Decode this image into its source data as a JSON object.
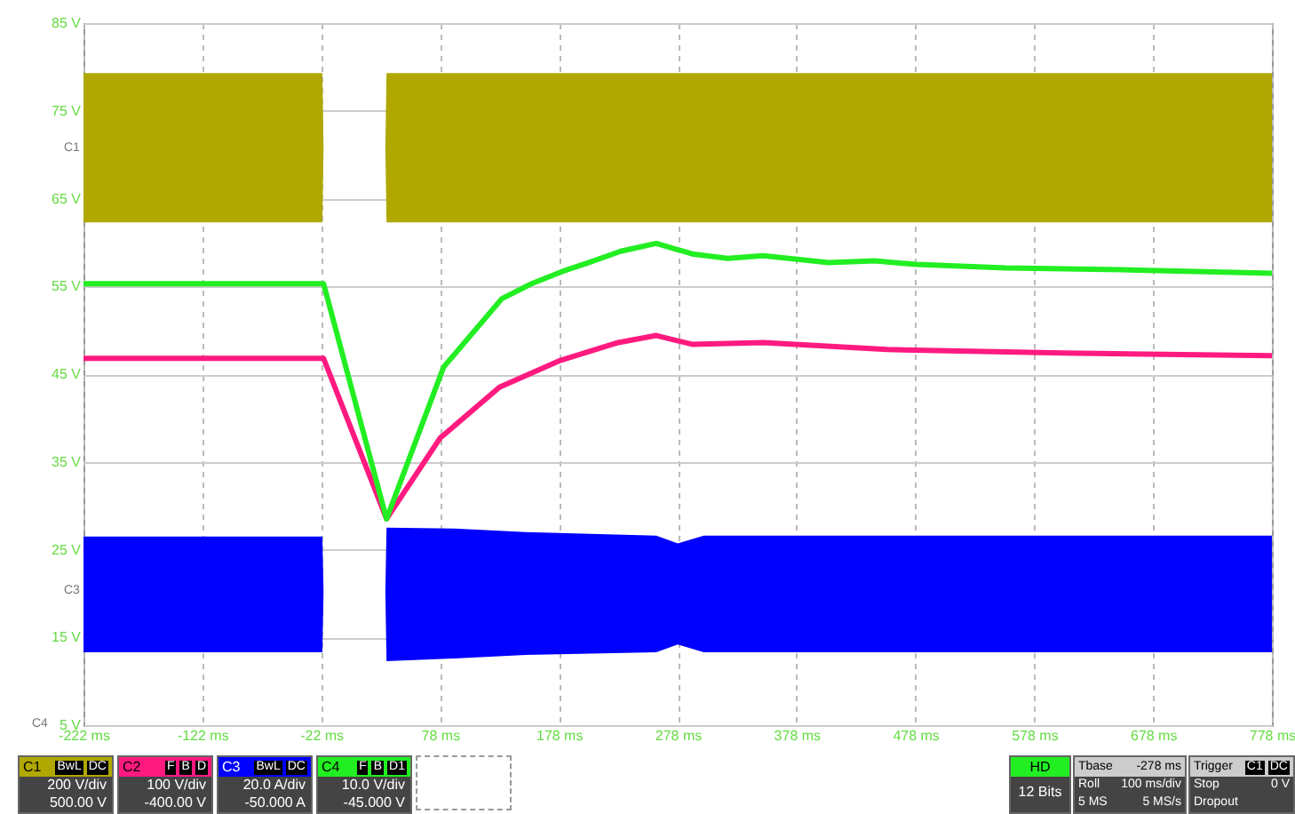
{
  "chart_data": {
    "type": "line",
    "xlim": [
      -222,
      778
    ],
    "ylim": [
      5,
      85
    ],
    "xticks": [
      {
        "value": -222,
        "label": "-222 ms"
      },
      {
        "value": -122,
        "label": "-122 ms"
      },
      {
        "value": -22,
        "label": "-22 ms"
      },
      {
        "value": 78,
        "label": "78 ms"
      },
      {
        "value": 178,
        "label": "178 ms"
      },
      {
        "value": 278,
        "label": "278 ms"
      },
      {
        "value": 378,
        "label": "378 ms"
      },
      {
        "value": 478,
        "label": "478 ms"
      },
      {
        "value": 578,
        "label": "578 ms"
      },
      {
        "value": 678,
        "label": "678 ms"
      },
      {
        "value": 778,
        "label": "778 ms"
      }
    ],
    "yticks": [
      {
        "value": 5,
        "label": "5 V"
      },
      {
        "value": 15,
        "label": "15 V"
      },
      {
        "value": 25,
        "label": "25 V"
      },
      {
        "value": 35,
        "label": "35 V"
      },
      {
        "value": 45,
        "label": "45 V"
      },
      {
        "value": 55,
        "label": "55 V"
      },
      {
        "value": 65,
        "label": "65 V"
      },
      {
        "value": 75,
        "label": "75 V"
      },
      {
        "value": 85,
        "label": "85 V"
      }
    ],
    "grid": true,
    "series": [
      {
        "color": "#b0a800",
        "x": [
          -222,
          -21,
          -20,
          32,
          33,
          778
        ],
        "values": [
          null,
          null,
          null,
          null,
          null,
          null
        ],
        "lower": [
          62.3,
          62.3,
          70.8,
          70.8,
          62.3,
          62.3
        ],
        "upper": [
          79.3,
          79.3,
          70.8,
          70.8,
          79.3,
          79.3
        ]
      },
      {
        "color": "#ff1a80",
        "x": [
          -222,
          -20,
          33,
          78,
          128,
          178,
          228,
          260,
          290,
          350,
          454,
          603,
          778
        ],
        "values": [
          46.8,
          46.8,
          28.5,
          37.7,
          43.5,
          46.5,
          48.6,
          49.4,
          48.4,
          48.6,
          47.8,
          47.4,
          47.1
        ]
      },
      {
        "color": "#0000ff",
        "x": [
          -222,
          -21,
          -20,
          32,
          33,
          90,
          150,
          260,
          278,
          300,
          778
        ],
        "values": [
          null,
          null,
          null,
          null,
          null,
          null,
          null,
          null,
          null,
          null,
          null
        ],
        "lower": [
          13.3,
          13.3,
          20.2,
          20.2,
          12.3,
          12.6,
          13.0,
          13.3,
          14.2,
          13.3,
          13.3
        ],
        "upper": [
          26.5,
          26.5,
          20.2,
          20.2,
          27.5,
          27.4,
          27.0,
          26.6,
          25.7,
          26.6,
          26.6
        ]
      },
      {
        "color": "#22ee22",
        "x": [
          -222,
          -20,
          33,
          81,
          130,
          155,
          181,
          205,
          230,
          260,
          290,
          320,
          350,
          405,
          444,
          479,
          554,
          652,
          778
        ],
        "values": [
          55.3,
          55.3,
          28.5,
          45.8,
          53.6,
          55.3,
          56.7,
          57.8,
          59.0,
          59.9,
          58.7,
          58.2,
          58.5,
          57.7,
          57.9,
          57.5,
          57.1,
          56.9,
          56.5
        ]
      }
    ],
    "annotations": [
      "C1",
      "BwL",
      "DC",
      "200 V/div",
      "500.00 V",
      "C2",
      "F",
      "B",
      "D",
      "100 V/div",
      "-400.00 V",
      "C3",
      "BwL",
      "DC",
      "20.0 A/div",
      "-50.000 A",
      "C4",
      "F",
      "B",
      "D1",
      "10.0 V/div",
      "-45.000 V",
      "HD",
      "12 Bits",
      "Tbase",
      "-278 ms",
      "Roll",
      "100 ms/div",
      "5 MS",
      "5 MS/s",
      "Trigger",
      "C1",
      "DC",
      "Stop",
      "0 V",
      "Dropout",
      "C1",
      "C3",
      "C4"
    ]
  }
}
